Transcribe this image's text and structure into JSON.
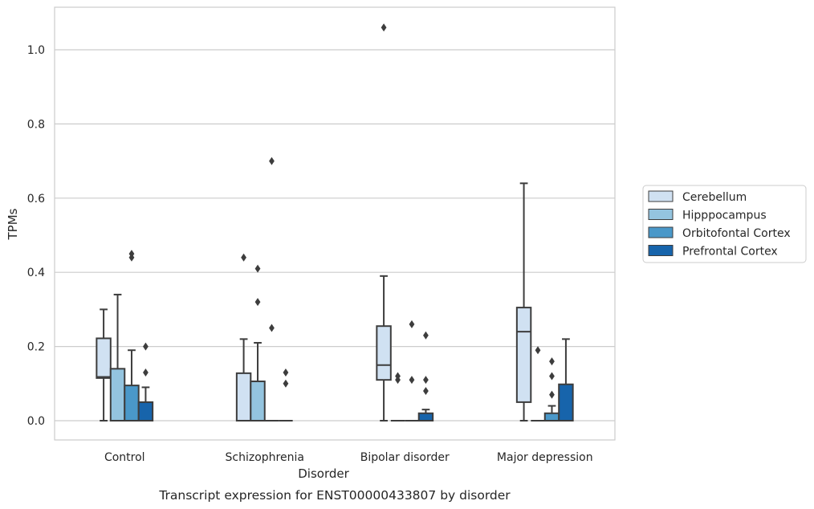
{
  "chart_data": {
    "type": "box",
    "caption": "Transcript expression for ENST00000433807 by disorder",
    "xlabel": "Disorder",
    "ylabel": "TPMs",
    "ylim": [
      -0.05,
      1.115
    ],
    "yticks": [
      0.0,
      0.2,
      0.4,
      0.6,
      0.8,
      1.0
    ],
    "ytick_labels": [
      "0.0",
      "0.2",
      "0.4",
      "0.6",
      "0.8",
      "1.0"
    ],
    "grid": "horizontal",
    "legend_position": "right",
    "categories": [
      "Control",
      "Schizophrenia",
      "Bipolar disorder",
      "Major depression"
    ],
    "series": [
      {
        "name": "Cerebellum",
        "color": "#d0e1f2",
        "boxes": [
          {
            "q1": 0.115,
            "median": 0.118,
            "q3": 0.222,
            "wlo": 0.0,
            "whi": 0.3,
            "outliers": []
          },
          {
            "q1": 0.0,
            "median": 0.0,
            "q3": 0.128,
            "wlo": 0.0,
            "whi": 0.22,
            "outliers": [
              0.44
            ]
          },
          {
            "q1": 0.11,
            "median": 0.15,
            "q3": 0.255,
            "wlo": 0.0,
            "whi": 0.39,
            "outliers": [
              1.06
            ]
          },
          {
            "q1": 0.05,
            "median": 0.24,
            "q3": 0.305,
            "wlo": 0.0,
            "whi": 0.64,
            "outliers": []
          }
        ]
      },
      {
        "name": "Hipppocampus",
        "color": "#94c4df",
        "boxes": [
          {
            "q1": 0.0,
            "median": 0.0,
            "q3": 0.14,
            "wlo": 0.0,
            "whi": 0.34,
            "outliers": []
          },
          {
            "q1": 0.0,
            "median": 0.0,
            "q3": 0.106,
            "wlo": 0.0,
            "whi": 0.21,
            "outliers": [
              0.32,
              0.41
            ]
          },
          {
            "q1": 0.0,
            "median": 0.0,
            "q3": 0.0,
            "wlo": 0.0,
            "whi": 0.0,
            "outliers": [
              0.11,
              0.12
            ]
          },
          {
            "q1": 0.0,
            "median": 0.0,
            "q3": 0.0,
            "wlo": 0.0,
            "whi": 0.0,
            "outliers": [
              0.19
            ]
          }
        ]
      },
      {
        "name": "Orbitofontal Cortex",
        "color": "#4a98c9",
        "boxes": [
          {
            "q1": 0.0,
            "median": 0.0,
            "q3": 0.095,
            "wlo": 0.0,
            "whi": 0.19,
            "outliers": [
              0.44,
              0.45
            ]
          },
          {
            "q1": 0.0,
            "median": 0.0,
            "q3": 0.0,
            "wlo": 0.0,
            "whi": 0.0,
            "outliers": [
              0.25,
              0.7
            ]
          },
          {
            "q1": 0.0,
            "median": 0.0,
            "q3": 0.0,
            "wlo": 0.0,
            "whi": 0.0,
            "outliers": [
              0.11,
              0.26
            ]
          },
          {
            "q1": 0.0,
            "median": 0.0,
            "q3": 0.02,
            "wlo": 0.0,
            "whi": 0.04,
            "outliers": [
              0.07,
              0.12,
              0.16
            ]
          }
        ]
      },
      {
        "name": "Prefrontal Cortex",
        "color": "#1764ab",
        "boxes": [
          {
            "q1": 0.0,
            "median": 0.0,
            "q3": 0.05,
            "wlo": 0.0,
            "whi": 0.09,
            "outliers": [
              0.13,
              0.2
            ]
          },
          {
            "q1": 0.0,
            "median": 0.0,
            "q3": 0.0,
            "wlo": 0.0,
            "whi": 0.0,
            "outliers": [
              0.1,
              0.13
            ]
          },
          {
            "q1": 0.0,
            "median": 0.0,
            "q3": 0.02,
            "wlo": 0.0,
            "whi": 0.03,
            "outliers": [
              0.08,
              0.11,
              0.23
            ]
          },
          {
            "q1": 0.0,
            "median": 0.0,
            "q3": 0.098,
            "wlo": 0.0,
            "whi": 0.22,
            "outliers": []
          }
        ]
      }
    ]
  }
}
